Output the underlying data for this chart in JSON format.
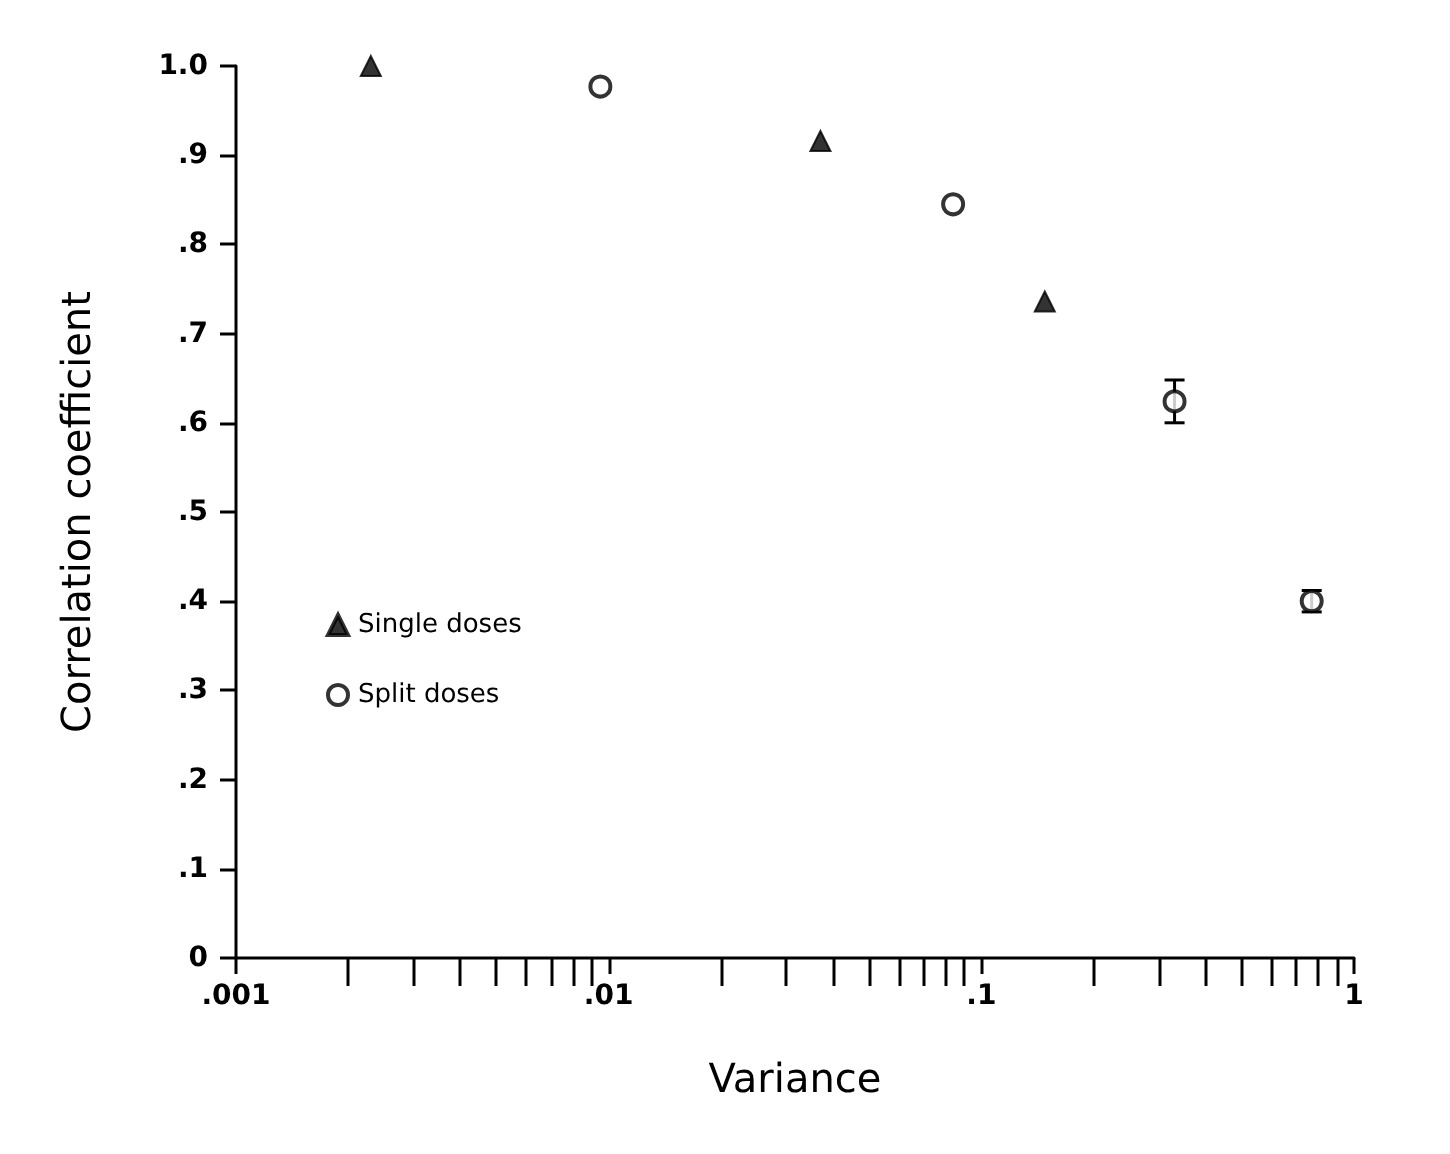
{
  "chart_data": {
    "type": "scatter",
    "xlabel": "Variance",
    "ylabel": "Correlation coefficient",
    "log": "x",
    "xlim": [
      0.001,
      1
    ],
    "xticks": [
      {
        "value": 0.001,
        "label": ".001"
      },
      {
        "value": 0.01,
        "label": ".01"
      },
      {
        "value": 0.1,
        "label": ".1"
      },
      {
        "value": 1,
        "label": "1"
      }
    ],
    "ylim": [
      0,
      1
    ],
    "yticks": [
      {
        "value": 0,
        "label": "0"
      },
      {
        "value": 0.1,
        "label": ".1"
      },
      {
        "value": 0.2,
        "label": ".2"
      },
      {
        "value": 0.3,
        "label": ".3"
      },
      {
        "value": 0.4,
        "label": ".4"
      },
      {
        "value": 0.5,
        "label": ".5"
      },
      {
        "value": 0.6,
        "label": ".6"
      },
      {
        "value": 0.7,
        "label": ".7"
      },
      {
        "value": 0.8,
        "label": ".8"
      },
      {
        "value": 0.9,
        "label": ".9"
      },
      {
        "value": 1,
        "label": "1.0"
      }
    ],
    "grid": false,
    "legend": "bottom left",
    "series": [
      {
        "name": "Single doses",
        "color": "#000000",
        "marker": "triangle",
        "x": [
          0.0023,
          0.037,
          0.148
        ],
        "values": [
          1.0,
          0.916,
          0.736
        ]
      },
      {
        "name": "Split doses",
        "color": "#000000",
        "marker": "circle",
        "x": [
          0.0095,
          0.084,
          0.33,
          0.77
        ],
        "values": [
          0.977,
          0.845,
          0.624,
          0.4
        ],
        "errors": [
          null,
          null,
          0.024,
          0.012
        ]
      }
    ]
  }
}
